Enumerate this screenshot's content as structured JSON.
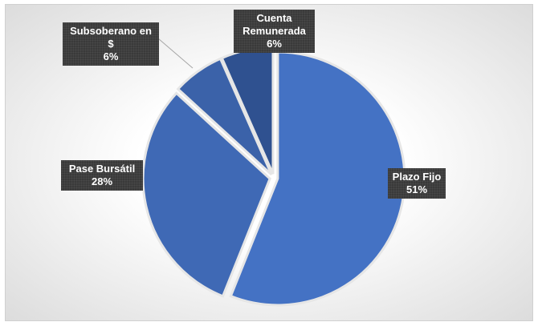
{
  "chart_data": {
    "type": "pie",
    "categories": [
      "Plazo Fijo",
      "Pase Bursátil",
      "Subsoberano en $",
      "Cuenta Remunerada"
    ],
    "values": [
      51,
      28,
      6,
      6
    ],
    "value_labels": [
      "51%",
      "28%",
      "6%",
      "6%"
    ],
    "colors": [
      "#4472c4",
      "#3f69b5",
      "#3b62a9",
      "#2f5190"
    ]
  }
}
